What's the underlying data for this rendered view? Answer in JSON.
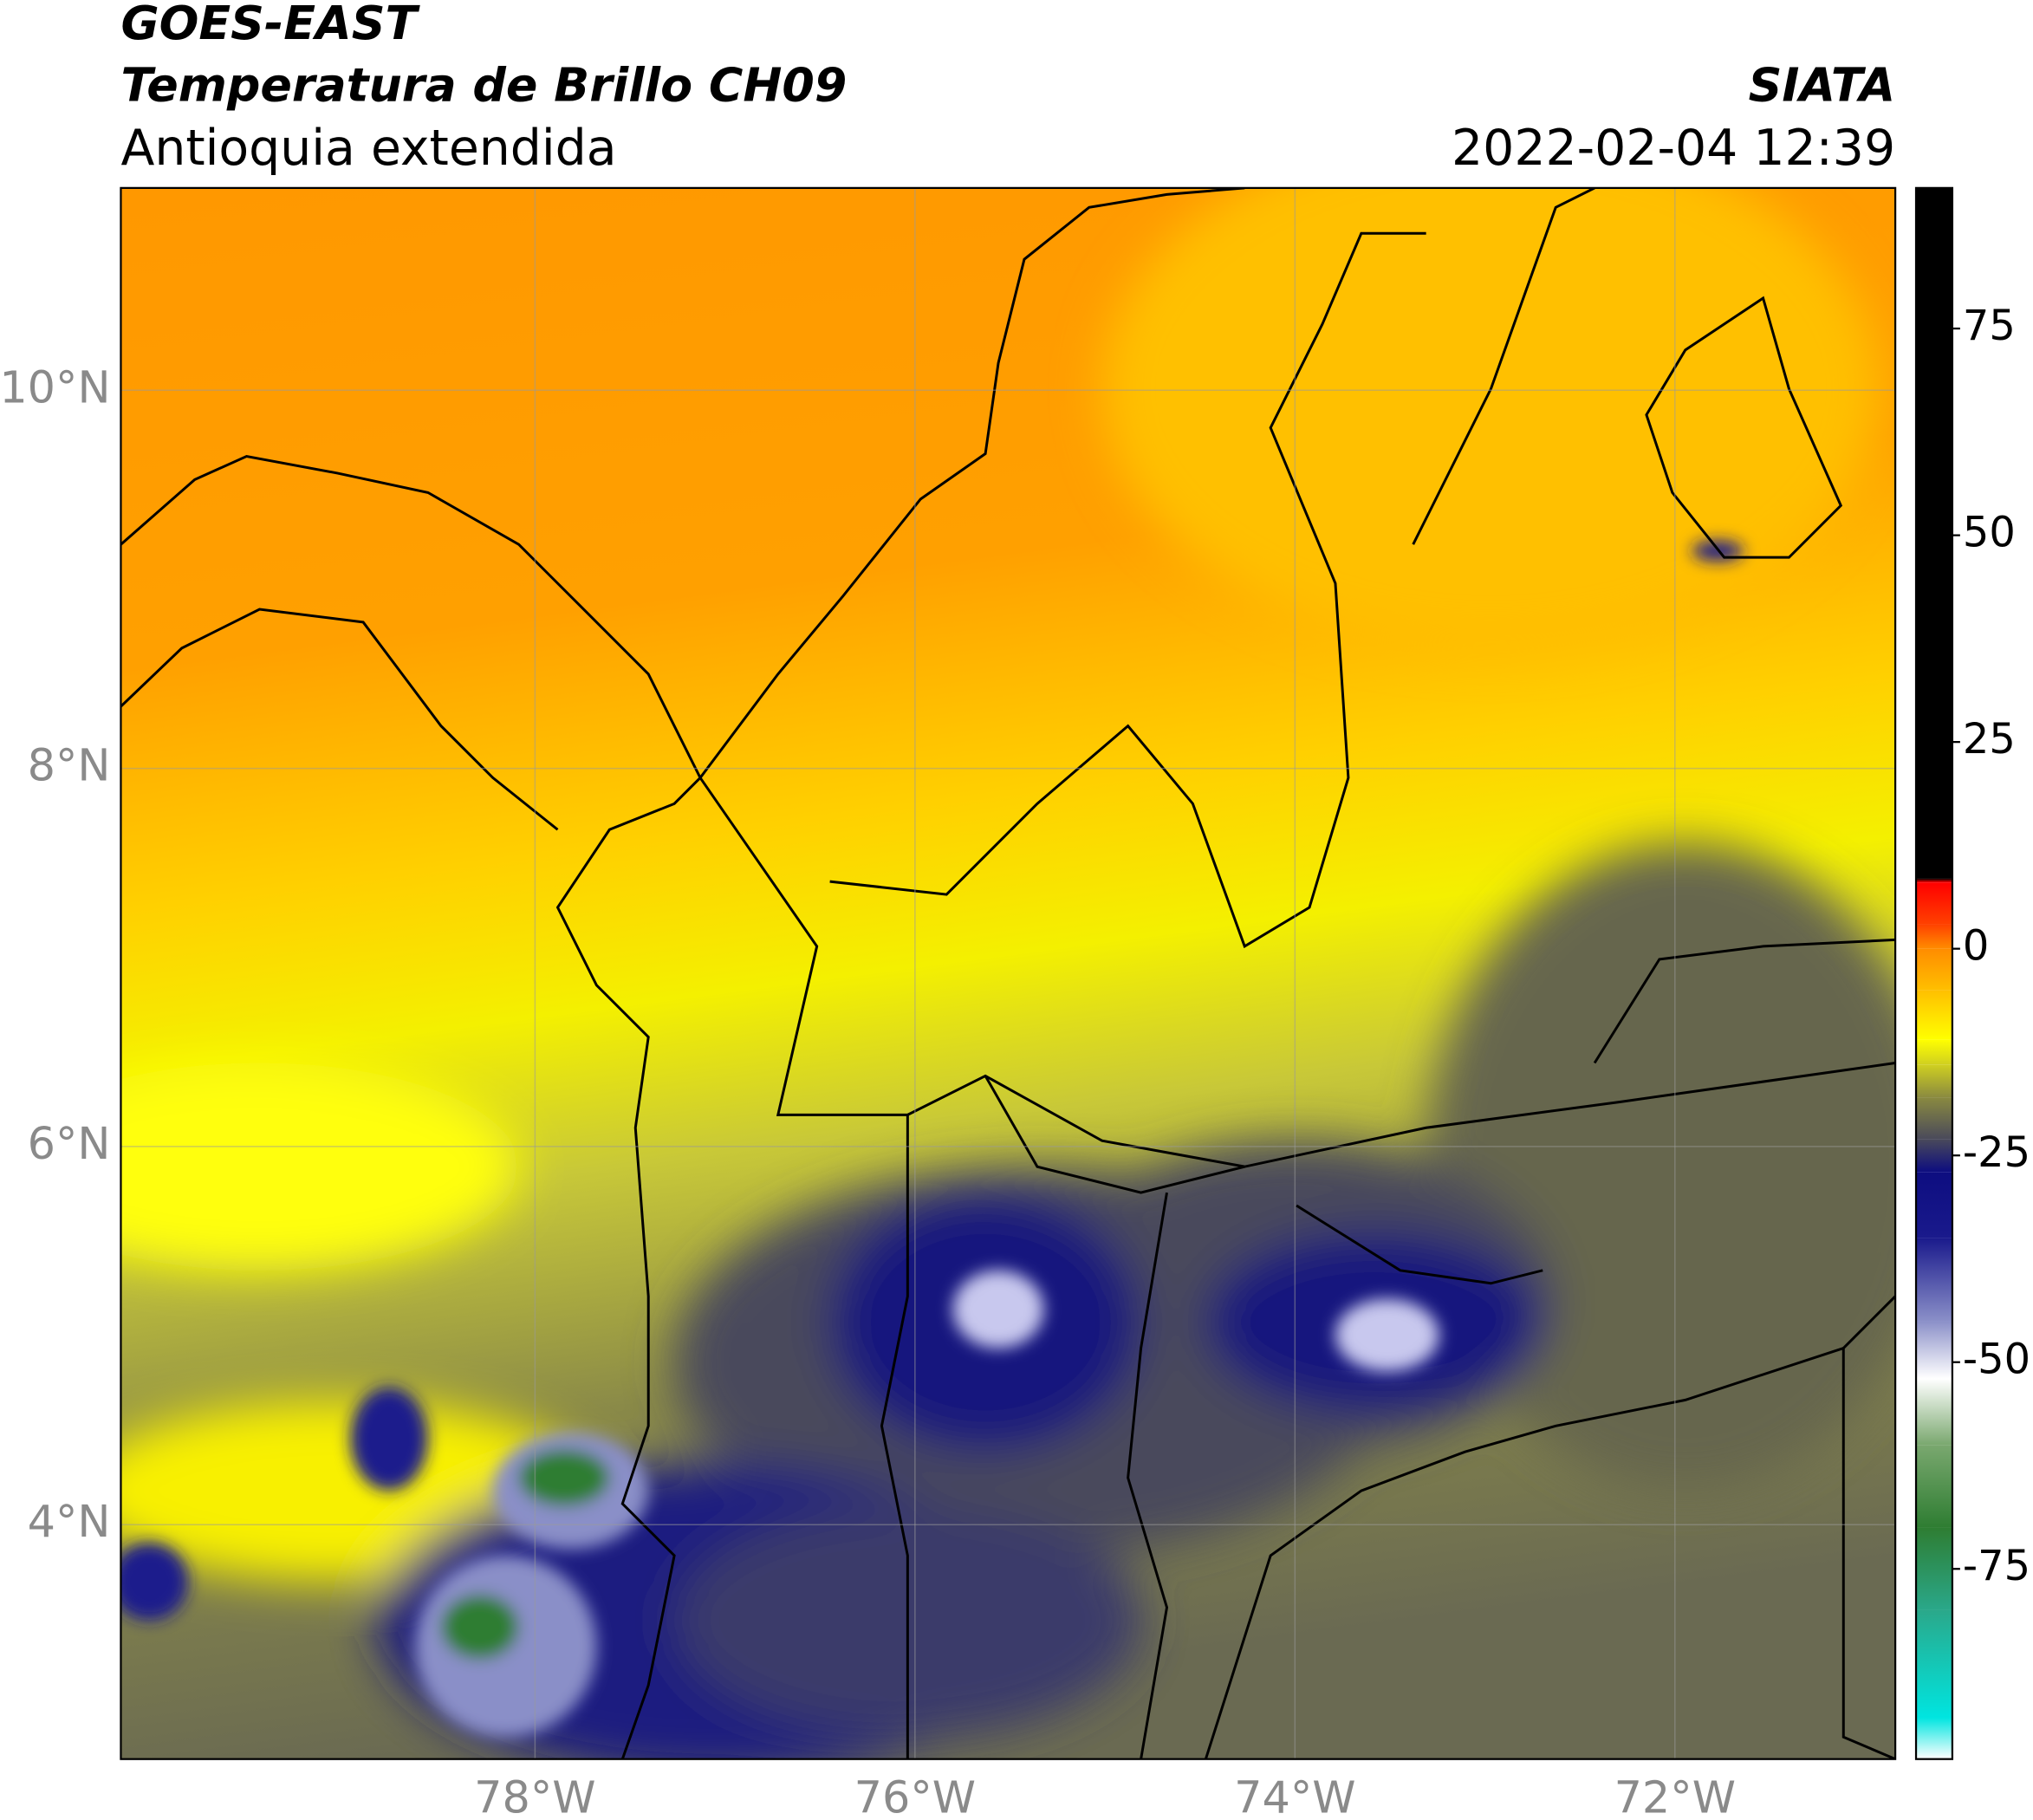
{
  "chart_data": {
    "type": "map",
    "title": "GOES-EAST",
    "subtitle": "Temperatura de Brillo CH09",
    "region": "Antioquia extendida",
    "source": "SIATA",
    "datetime": "2022-02-04 12:39",
    "xlim": [
      -80.18,
      -70.84
    ],
    "ylim": [
      2.76,
      11.07
    ],
    "xticks": [
      {
        "value": -78,
        "label": "78°W"
      },
      {
        "value": -76,
        "label": "76°W"
      },
      {
        "value": -74,
        "label": "74°W"
      },
      {
        "value": -72,
        "label": "72°W"
      }
    ],
    "yticks": [
      {
        "value": 4,
        "label": "4°N"
      },
      {
        "value": 6,
        "label": "6°N"
      },
      {
        "value": 8,
        "label": "8°N"
      },
      {
        "value": 10,
        "label": "10°N"
      }
    ],
    "grid": true,
    "colorbar": {
      "lim": [
        -98,
        92
      ],
      "ticks": [
        -75,
        -50,
        -25,
        0,
        25,
        50,
        75
      ],
      "stops": [
        {
          "value": -98,
          "color": "#ffffff"
        },
        {
          "value": -93,
          "color": "#00e5e0"
        },
        {
          "value": -80,
          "color": "#2aa88a"
        },
        {
          "value": -70,
          "color": "#2e7d32"
        },
        {
          "value": -60,
          "color": "#7aa86f"
        },
        {
          "value": -52,
          "color": "#ffffff"
        },
        {
          "value": -45,
          "color": "#8a8fc8"
        },
        {
          "value": -35,
          "color": "#1a1a8c"
        },
        {
          "value": -27,
          "color": "#0d0d80"
        },
        {
          "value": -23,
          "color": "#4a4a5a"
        },
        {
          "value": -18,
          "color": "#8a8a40"
        },
        {
          "value": -14,
          "color": "#d0d020"
        },
        {
          "value": -11,
          "color": "#ffff00"
        },
        {
          "value": -5,
          "color": "#ffbf00"
        },
        {
          "value": 0,
          "color": "#ff8c00"
        },
        {
          "value": 3,
          "color": "#ff4000"
        },
        {
          "value": 8,
          "color": "#ff0000"
        },
        {
          "value": 8.5,
          "color": "#000000"
        },
        {
          "value": 92,
          "color": "#000000"
        }
      ]
    }
  }
}
